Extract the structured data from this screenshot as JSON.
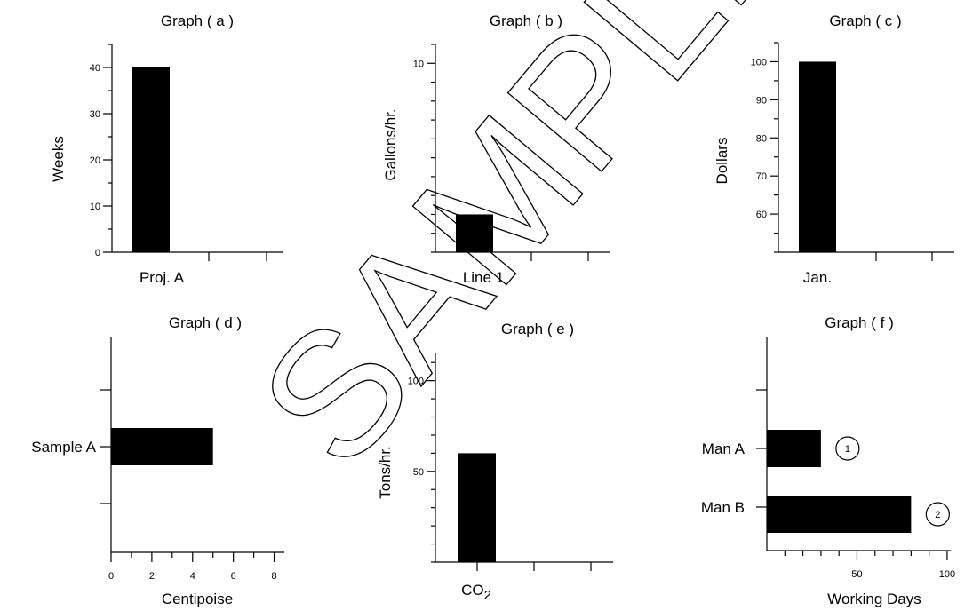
{
  "watermark": {
    "text": "SAMPLE"
  },
  "chart_data": [
    {
      "id": "a",
      "type": "bar",
      "orientation": "vertical",
      "title": "Graph ( a )",
      "xlabel": "",
      "ylabel": "Weeks",
      "categories": [
        "Proj. A"
      ],
      "values": [
        40
      ],
      "ylim": [
        0,
        45
      ],
      "yticks": [
        0,
        10,
        20,
        30,
        40
      ],
      "ytick_labels": [
        "0",
        "10",
        "20",
        "30",
        "40"
      ]
    },
    {
      "id": "b",
      "type": "bar",
      "orientation": "vertical",
      "title": "Graph ( b )",
      "xlabel": "",
      "ylabel": "Gallons/hr.",
      "categories": [
        "Line 1"
      ],
      "values": [
        2
      ],
      "ylim": [
        0,
        11
      ],
      "yticks": [
        10
      ],
      "ytick_labels": [
        "10"
      ]
    },
    {
      "id": "c",
      "type": "bar",
      "orientation": "vertical",
      "title": "Graph ( c )",
      "xlabel": "",
      "ylabel": "Dollars",
      "categories": [
        "Jan."
      ],
      "values": [
        100
      ],
      "ylim": [
        50,
        105
      ],
      "yticks": [
        60,
        70,
        80,
        90,
        100
      ],
      "ytick_labels": [
        "60",
        "70",
        "80",
        "90",
        "100"
      ]
    },
    {
      "id": "d",
      "type": "bar",
      "orientation": "horizontal",
      "title": "Graph ( d )",
      "xlabel": "Centipoise",
      "ylabel": "",
      "categories": [
        "Sample A"
      ],
      "values": [
        5
      ],
      "xlim": [
        0,
        8.5
      ],
      "xticks": [
        0,
        2,
        4,
        6,
        8
      ],
      "xtick_labels": [
        "0",
        "2",
        "4",
        "6",
        "8"
      ]
    },
    {
      "id": "e",
      "type": "bar",
      "orientation": "vertical",
      "title": "Graph ( e )",
      "xlabel": "",
      "ylabel": "Tons/hr.",
      "categories": [
        "CO2"
      ],
      "values": [
        60
      ],
      "ylim": [
        0,
        115
      ],
      "yticks": [
        50,
        100
      ],
      "ytick_labels": [
        "50",
        "100"
      ]
    },
    {
      "id": "f",
      "type": "bar",
      "orientation": "horizontal",
      "title": "Graph ( f )",
      "xlabel": "Working Days",
      "ylabel": "",
      "categories": [
        "Man A",
        "Man B"
      ],
      "values": [
        30,
        80
      ],
      "xlim": [
        0,
        102
      ],
      "xticks": [
        50,
        100
      ],
      "xtick_labels": [
        "50",
        "100"
      ],
      "bar_markers": [
        "1",
        "2"
      ]
    }
  ]
}
